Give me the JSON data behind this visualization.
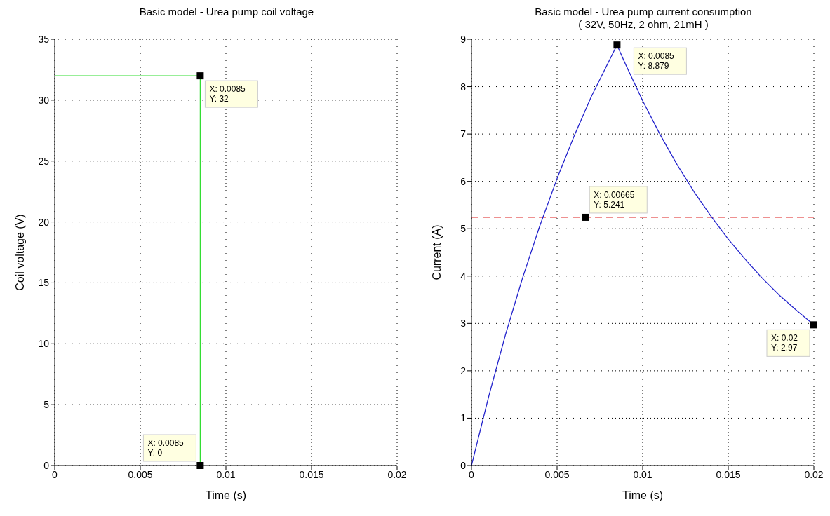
{
  "chart_data": [
    {
      "type": "line",
      "title": "Basic model - Urea pump coil voltage",
      "xlabel": "Time (s)",
      "ylabel": "Coil voltage (V)",
      "series": [
        {
          "color": "#33dd33",
          "x": [
            0,
            0.0085,
            0.0085
          ],
          "values": [
            32,
            32,
            0
          ]
        }
      ],
      "xlim": [
        0,
        0.02
      ],
      "xticks": [
        0,
        0.005,
        0.01,
        0.015,
        0.02
      ],
      "ylim": [
        0,
        35
      ],
      "yticks": [
        0,
        5,
        10,
        15,
        20,
        25,
        30,
        35
      ],
      "grid": true,
      "annotations": [
        {
          "text": "X: 0.0085\nY: 32",
          "x": 0.0085,
          "y": 32
        },
        {
          "text": "X: 0.0085\nY: 0",
          "x": 0.0085,
          "y": 0
        }
      ]
    },
    {
      "type": "line",
      "title": "Basic model - Urea pump current consumption",
      "subtitle": "( 32V, 50Hz, 2 ohm, 21mH )",
      "xlabel": "Time (s)",
      "ylabel": "Current (A)",
      "series": [
        {
          "color": "#2222cc",
          "x": [
            0,
            0.001,
            0.002,
            0.003,
            0.004,
            0.005,
            0.006,
            0.007,
            0.0085,
            0.009,
            0.01,
            0.011,
            0.012,
            0.013,
            0.014,
            0.015,
            0.016,
            0.017,
            0.018,
            0.019,
            0.02
          ],
          "values": [
            0,
            1.45,
            2.78,
            3.98,
            5.07,
            6.06,
            6.96,
            7.79,
            8.879,
            8.47,
            7.7,
            7.0,
            6.36,
            5.78,
            5.26,
            4.78,
            4.35,
            3.95,
            3.59,
            3.27,
            2.97
          ]
        }
      ],
      "xlim": [
        0,
        0.02
      ],
      "xticks": [
        0,
        0.005,
        0.01,
        0.015,
        0.02
      ],
      "ylim": [
        0,
        9
      ],
      "yticks": [
        0,
        1,
        2,
        3,
        4,
        5,
        6,
        7,
        8,
        9
      ],
      "grid": true,
      "ref_lines": [
        {
          "axis": "y",
          "value": 5.241,
          "color": "#dd2222",
          "line_style": "dashed"
        }
      ],
      "annotations": [
        {
          "text": "X: 0.0085\nY: 8.879",
          "x": 0.0085,
          "y": 8.879
        },
        {
          "text": "X: 0.00665\nY: 5.241",
          "x": 0.00665,
          "y": 5.241
        },
        {
          "text": "X: 0.02\nY: 2.97",
          "x": 0.02,
          "y": 2.97
        }
      ]
    }
  ]
}
